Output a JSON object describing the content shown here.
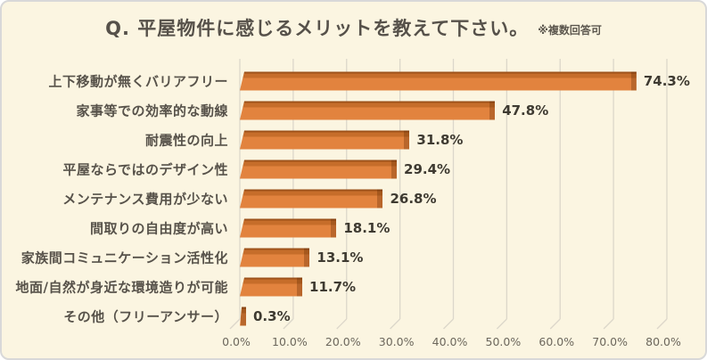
{
  "header": {
    "title": "Q. 平屋物件に感じるメリットを教えて下さい。",
    "note": "※複数回答可"
  },
  "chart_data": {
    "type": "bar",
    "orientation": "horizontal",
    "title": "Q. 平屋物件に感じるメリットを教えて下さい。",
    "subtitle": "※複数回答可",
    "categories": [
      "上下移動が無くバリアフリー",
      "家事等での効率的な動線",
      "耐震性の向上",
      "平屋ならではのデザイン性",
      "メンテナンス費用が少ない",
      "間取りの自由度が高い",
      "家族間コミュニケーション活性化",
      "地面/自然が身近な環境造りが可能",
      "その他（フリーアンサー）"
    ],
    "values": [
      74.3,
      47.8,
      31.8,
      29.4,
      26.8,
      18.1,
      13.1,
      11.7,
      0.3
    ],
    "value_labels": [
      "74.3%",
      "47.8%",
      "31.8%",
      "29.4%",
      "26.8%",
      "18.1%",
      "13.1%",
      "11.7%",
      "0.3%"
    ],
    "x_ticks": [
      "0.0%",
      "10.0%",
      "20.0%",
      "30.0%",
      "40.0%",
      "50.0%",
      "60.0%",
      "70.0%",
      "80.0%"
    ],
    "x_tick_values": [
      0,
      10,
      20,
      30,
      40,
      50,
      60,
      70,
      80
    ],
    "xlim": [
      0,
      80
    ],
    "xlabel": "",
    "ylabel": "",
    "grid": true,
    "legend": false,
    "style": "3d",
    "colors": {
      "background": "#fbf5e1",
      "bar_face": "#e2833e",
      "bar_top_band": "#c66d2a",
      "bar_top_line": "#9e521b",
      "gridline": "#dcd7ca",
      "title_text": "#56514a",
      "label_text": "#57524a",
      "value_text": "#3e3a31",
      "tick_text": "#6c675c"
    }
  }
}
